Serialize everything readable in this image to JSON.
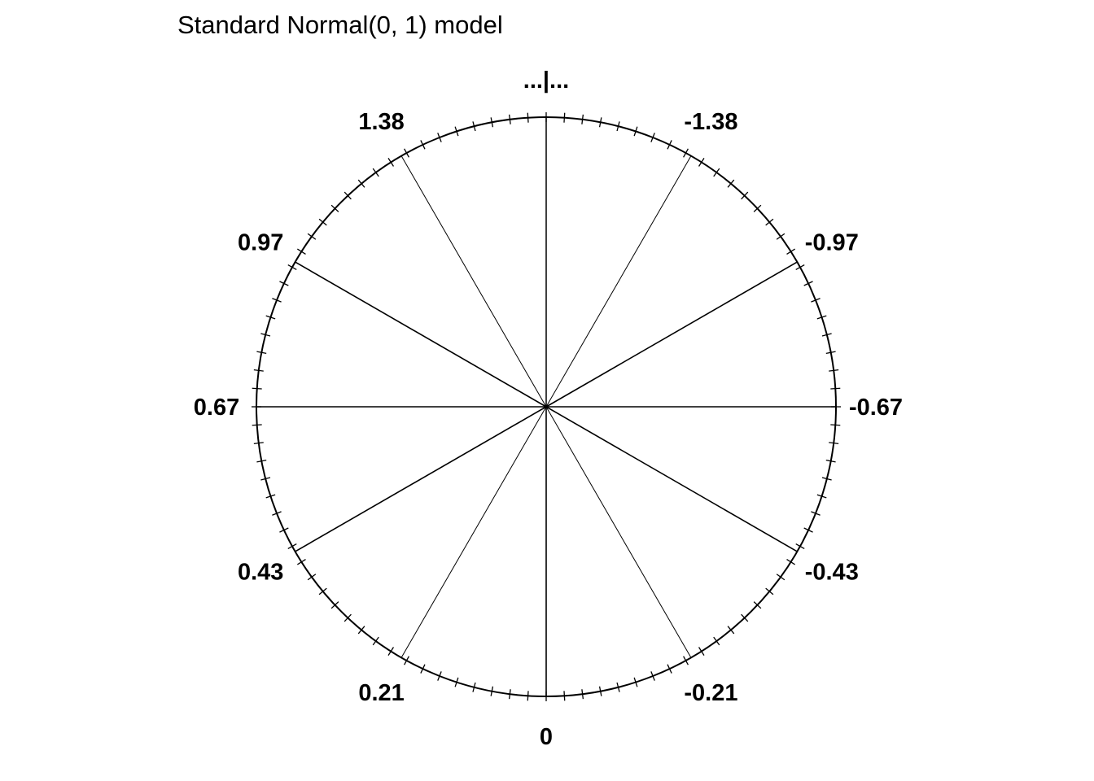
{
  "chart_data": {
    "type": "circular-scale",
    "title": "Standard Normal(0, 1) model",
    "top_label": "...|...",
    "circle_points": 100,
    "spokes": [
      {
        "quantile": 0.0833,
        "label": "-1.38"
      },
      {
        "quantile": 0.1667,
        "label": "-0.97"
      },
      {
        "quantile": 0.25,
        "label": "-0.67"
      },
      {
        "quantile": 0.3333,
        "label": "-0.43"
      },
      {
        "quantile": 0.4167,
        "label": "-0.21"
      },
      {
        "quantile": 0.5,
        "label": "0"
      },
      {
        "quantile": 0.5833,
        "label": "0.21"
      },
      {
        "quantile": 0.6667,
        "label": "0.43"
      },
      {
        "quantile": 0.75,
        "label": "0.67"
      },
      {
        "quantile": 0.8333,
        "label": "0.97"
      },
      {
        "quantile": 0.9167,
        "label": "1.38"
      }
    ],
    "colors": {
      "line": "#000000",
      "background": "#ffffff"
    }
  }
}
